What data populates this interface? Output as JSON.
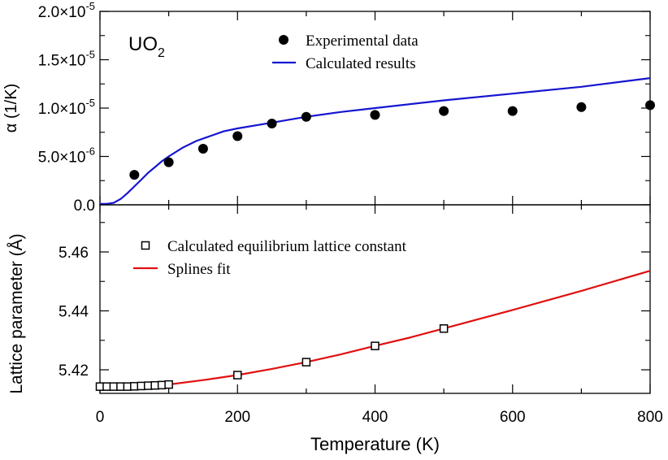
{
  "chart_data": [
    {
      "type": "scatter",
      "panel": "top",
      "annotation": {
        "base": "UO",
        "sub": "2"
      },
      "ylabel": "α (1/K)",
      "xlim": [
        0,
        800
      ],
      "ylim": [
        0,
        2e-05
      ],
      "y_ticks": [
        {
          "value": 0,
          "mant": "0.0",
          "exp": ""
        },
        {
          "value": 5e-06,
          "mant": "5.0×10",
          "exp": "-6"
        },
        {
          "value": 1e-05,
          "mant": "1.0×10",
          "exp": "-5"
        },
        {
          "value": 1.5e-05,
          "mant": "1.5×10",
          "exp": "-5"
        },
        {
          "value": 2e-05,
          "mant": "2.0×10",
          "exp": "-5"
        }
      ],
      "legend_position": "top-center",
      "series": [
        {
          "name": "Experimental data",
          "kind": "markers",
          "marker": "filled-circle",
          "color": "#000000",
          "x": [
            50,
            100,
            150,
            200,
            250,
            300,
            400,
            500,
            600,
            700,
            800
          ],
          "y": [
            3.1e-06,
            4.4e-06,
            5.8e-06,
            7.1e-06,
            8.4e-06,
            9.1e-06,
            9.3e-06,
            9.7e-06,
            9.7e-06,
            1.01e-05,
            1.03e-05
          ]
        },
        {
          "name": "Calculated results",
          "kind": "line",
          "color": "#1515d0",
          "x": [
            0,
            10,
            20,
            30,
            40,
            50,
            60,
            70,
            80,
            90,
            100,
            120,
            140,
            160,
            180,
            200,
            250,
            300,
            350,
            400,
            500,
            600,
            700,
            800
          ],
          "y": [
            1e-07,
            1e-07,
            2e-07,
            6e-07,
            1.2e-06,
            1.9e-06,
            2.6e-06,
            3.3e-06,
            3.9e-06,
            4.5e-06,
            5e-06,
            5.9e-06,
            6.6e-06,
            7.1e-06,
            7.6e-06,
            7.9e-06,
            8.5e-06,
            9.1e-06,
            9.6e-06,
            1e-05,
            1.08e-05,
            1.15e-05,
            1.22e-05,
            1.31e-05
          ]
        }
      ]
    },
    {
      "type": "scatter",
      "panel": "bottom",
      "xlabel": "Temperature (K)",
      "ylabel": "Lattice parameter (Å)",
      "xlim": [
        0,
        800
      ],
      "ylim": [
        5.412,
        5.476
      ],
      "x_ticks": [
        0,
        200,
        400,
        600,
        800
      ],
      "y_ticks": [
        5.42,
        5.44,
        5.46
      ],
      "legend_position": "top-left",
      "series": [
        {
          "name": "Calculated equilibrium lattice constant",
          "kind": "markers",
          "marker": "open-square",
          "color": "#000000",
          "x": [
            0,
            10,
            20,
            30,
            40,
            50,
            60,
            70,
            80,
            90,
            100,
            200,
            300,
            400,
            500
          ],
          "y": [
            5.4143,
            5.4143,
            5.4143,
            5.4143,
            5.4143,
            5.4144,
            5.4145,
            5.4146,
            5.4147,
            5.4148,
            5.415,
            5.4182,
            5.4226,
            5.4281,
            5.434
          ]
        },
        {
          "name": "Splines fit",
          "kind": "line",
          "color": "#e01010",
          "x": [
            0,
            20,
            40,
            60,
            80,
            100,
            150,
            200,
            250,
            300,
            350,
            400,
            450,
            500,
            600,
            700,
            800
          ],
          "y": [
            5.4143,
            5.4143,
            5.4143,
            5.4145,
            5.4147,
            5.415,
            5.4165,
            5.4182,
            5.4203,
            5.4226,
            5.4252,
            5.4281,
            5.4309,
            5.434,
            5.4403,
            5.4468,
            5.4536
          ]
        }
      ]
    }
  ]
}
